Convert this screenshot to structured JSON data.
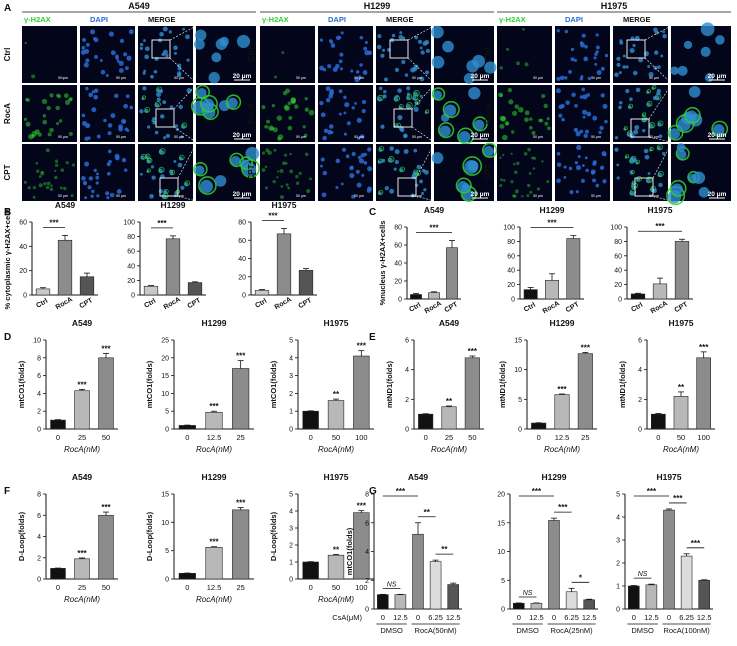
{
  "panels": {
    "A": {
      "letter": "A",
      "groups": [
        {
          "title": "A549",
          "channels": [
            "γ-H2AX",
            "DAPI",
            "MERGE"
          ]
        },
        {
          "title": "H1299",
          "channels": [
            "γ-H2AX",
            "DAPI",
            "MERGE"
          ]
        },
        {
          "title": "H1975",
          "channels": [
            "γ-H2AX",
            "DAPI",
            "MERGE"
          ]
        }
      ],
      "rows": [
        "Ctrl",
        "RocA",
        "CPT"
      ],
      "scale_small": "50 μm",
      "scale_large": "20 μm",
      "colors": {
        "gh2ax": "#2fd02f",
        "dapi": "#2a6bd6",
        "merge": "#2f8fd0",
        "bg": "#03061a"
      }
    },
    "B": {
      "letter": "B"
    },
    "C": {
      "letter": "C"
    },
    "D": {
      "letter": "D"
    },
    "E": {
      "letter": "E"
    },
    "F": {
      "letter": "F"
    },
    "G": {
      "letter": "G"
    }
  },
  "chart_data": [
    {
      "id": "B1",
      "panel": "B",
      "type": "bar",
      "title": "A549",
      "ylabel": "% cytoplasmic γ-H2AX+cells",
      "categories": [
        "Ctrl",
        "RocA",
        "CPT"
      ],
      "values": [
        5,
        45,
        15
      ],
      "errors": [
        1,
        4,
        3
      ],
      "ylim": [
        0,
        60
      ],
      "yticks": [
        0,
        20,
        40,
        60
      ],
      "colors": [
        "#c8c8c8",
        "#8c8c8c",
        "#555555"
      ],
      "sig": [
        {
          "from": 0,
          "to": 1,
          "label": "***"
        }
      ]
    },
    {
      "id": "B2",
      "panel": "B",
      "type": "bar",
      "title": "H1299",
      "ylabel": "",
      "categories": [
        "Ctrl",
        "RocA",
        "CPT"
      ],
      "values": [
        12,
        77,
        17
      ],
      "errors": [
        1,
        4,
        1
      ],
      "ylim": [
        0,
        100
      ],
      "yticks": [
        0,
        20,
        40,
        60,
        80,
        100
      ],
      "colors": [
        "#c8c8c8",
        "#8c8c8c",
        "#555555"
      ],
      "sig": [
        {
          "from": 0,
          "to": 1,
          "label": "***"
        }
      ]
    },
    {
      "id": "B3",
      "panel": "B",
      "type": "bar",
      "title": "H1975",
      "ylabel": "",
      "categories": [
        "Ctrl",
        "RocA",
        "CPT"
      ],
      "values": [
        5,
        67,
        27
      ],
      "errors": [
        1,
        6,
        2
      ],
      "ylim": [
        0,
        80
      ],
      "yticks": [
        0,
        20,
        40,
        60,
        80
      ],
      "colors": [
        "#c8c8c8",
        "#8c8c8c",
        "#555555"
      ],
      "sig": [
        {
          "from": 0,
          "to": 1,
          "label": "***"
        }
      ]
    },
    {
      "id": "C1",
      "panel": "C",
      "type": "bar",
      "title": "A549",
      "ylabel": "%nucleus γ-H2AX+cells",
      "categories": [
        "Ctrl",
        "RocA",
        "CPT"
      ],
      "values": [
        5,
        7,
        57
      ],
      "errors": [
        1,
        1,
        8
      ],
      "ylim": [
        0,
        80
      ],
      "yticks": [
        0,
        20,
        40,
        60,
        80
      ],
      "colors": [
        "#111111",
        "#b8b8b8",
        "#8c8c8c"
      ],
      "sig": [
        {
          "from": 0,
          "to": 2,
          "label": "***"
        }
      ]
    },
    {
      "id": "C2",
      "panel": "C",
      "type": "bar",
      "title": "H1299",
      "ylabel": "",
      "categories": [
        "Ctrl",
        "RocA",
        "CPT"
      ],
      "values": [
        13,
        26,
        84
      ],
      "errors": [
        3,
        9,
        4
      ],
      "ylim": [
        0,
        100
      ],
      "yticks": [
        0,
        20,
        40,
        60,
        80,
        100
      ],
      "colors": [
        "#111111",
        "#b8b8b8",
        "#8c8c8c"
      ],
      "sig": [
        {
          "from": 0,
          "to": 2,
          "label": "***"
        }
      ]
    },
    {
      "id": "C3",
      "panel": "C",
      "type": "bar",
      "title": "H1975",
      "ylabel": "",
      "categories": [
        "Ctrl",
        "RocA",
        "CPT"
      ],
      "values": [
        7,
        21,
        80
      ],
      "errors": [
        1,
        8,
        3
      ],
      "ylim": [
        0,
        100
      ],
      "yticks": [
        0,
        20,
        40,
        60,
        80,
        100
      ],
      "colors": [
        "#111111",
        "#b8b8b8",
        "#8c8c8c"
      ],
      "sig": [
        {
          "from": 0,
          "to": 2,
          "label": "***"
        }
      ]
    },
    {
      "id": "D1",
      "panel": "D",
      "type": "bar",
      "title": "A549",
      "ylabel": "mtCO1(folds)",
      "xlabel": "RocA(nM)",
      "categories": [
        "0",
        "25",
        "50"
      ],
      "values": [
        1,
        4.3,
        8.0
      ],
      "errors": [
        0.05,
        0.15,
        0.5
      ],
      "ylim": [
        0,
        10
      ],
      "yticks": [
        0,
        2,
        4,
        6,
        8,
        10
      ],
      "colors": [
        "#111111",
        "#b8b8b8",
        "#8c8c8c"
      ],
      "stars": [
        "",
        "***",
        "***"
      ]
    },
    {
      "id": "D2",
      "panel": "D",
      "type": "bar",
      "title": "H1299",
      "ylabel": "mtCO1(folds)",
      "xlabel": "RocA(nM)",
      "categories": [
        "0",
        "12.5",
        "25"
      ],
      "values": [
        1,
        4.7,
        17
      ],
      "errors": [
        0.1,
        0.3,
        2.2
      ],
      "ylim": [
        0,
        25
      ],
      "yticks": [
        0,
        5,
        10,
        15,
        20,
        25
      ],
      "colors": [
        "#111111",
        "#b8b8b8",
        "#8c8c8c"
      ],
      "stars": [
        "",
        "***",
        "***"
      ]
    },
    {
      "id": "D3",
      "panel": "D",
      "type": "bar",
      "title": "H1975",
      "ylabel": "mtCO1(folds)",
      "xlabel": "RocA(nM)",
      "categories": [
        "0",
        "50",
        "100"
      ],
      "values": [
        1,
        1.6,
        4.1
      ],
      "errors": [
        0.02,
        0.08,
        0.3
      ],
      "ylim": [
        0,
        5
      ],
      "yticks": [
        0,
        1,
        2,
        3,
        4,
        5
      ],
      "colors": [
        "#111111",
        "#b8b8b8",
        "#8c8c8c"
      ],
      "stars": [
        "",
        "**",
        "***"
      ]
    },
    {
      "id": "E1",
      "panel": "E",
      "type": "bar",
      "title": "A549",
      "ylabel": "mtND1(folds)",
      "xlabel": "RocA(nM)",
      "categories": [
        "0",
        "25",
        "50"
      ],
      "values": [
        1,
        1.5,
        4.8
      ],
      "errors": [
        0.03,
        0.05,
        0.12
      ],
      "ylim": [
        0,
        6
      ],
      "yticks": [
        0,
        2,
        4,
        6
      ],
      "colors": [
        "#111111",
        "#b8b8b8",
        "#8c8c8c"
      ],
      "stars": [
        "",
        "**",
        "***"
      ]
    },
    {
      "id": "E2",
      "panel": "E",
      "type": "bar",
      "title": "H1299",
      "ylabel": "mtND1(folds)",
      "xlabel": "RocA(nM)",
      "categories": [
        "0",
        "12.5",
        "25"
      ],
      "values": [
        1,
        5.8,
        12.7
      ],
      "errors": [
        0.05,
        0.1,
        0.2
      ],
      "ylim": [
        0,
        15
      ],
      "yticks": [
        0,
        5,
        10,
        15
      ],
      "colors": [
        "#111111",
        "#b8b8b8",
        "#8c8c8c"
      ],
      "stars": [
        "",
        "***",
        "***"
      ]
    },
    {
      "id": "E3",
      "panel": "E",
      "type": "bar",
      "title": "H1975",
      "ylabel": "mtND1(folds)",
      "xlabel": "RocA(nM)",
      "categories": [
        "0",
        "50",
        "100"
      ],
      "values": [
        1,
        2.2,
        4.8
      ],
      "errors": [
        0.05,
        0.3,
        0.4
      ],
      "ylim": [
        0,
        6
      ],
      "yticks": [
        0,
        2,
        4,
        6
      ],
      "colors": [
        "#111111",
        "#b8b8b8",
        "#8c8c8c"
      ],
      "stars": [
        "",
        "**",
        "***"
      ]
    },
    {
      "id": "F1",
      "panel": "F",
      "type": "bar",
      "title": "A549",
      "ylabel": "D-Loop(folds)",
      "xlabel": "RocA(nM)",
      "categories": [
        "0",
        "25",
        "50"
      ],
      "values": [
        1,
        1.9,
        6.0
      ],
      "errors": [
        0.03,
        0.08,
        0.3
      ],
      "ylim": [
        0,
        8
      ],
      "yticks": [
        0,
        2,
        4,
        6,
        8
      ],
      "colors": [
        "#111111",
        "#b8b8b8",
        "#8c8c8c"
      ],
      "stars": [
        "",
        "***",
        "***"
      ]
    },
    {
      "id": "F2",
      "panel": "F",
      "type": "bar",
      "title": "H1299",
      "ylabel": "D-Loop(folds)",
      "xlabel": "RocA(nM)",
      "categories": [
        "0",
        "12.5",
        "25"
      ],
      "values": [
        1,
        5.6,
        12.2
      ],
      "errors": [
        0.05,
        0.1,
        0.4
      ],
      "ylim": [
        0,
        15
      ],
      "yticks": [
        0,
        5,
        10,
        15
      ],
      "colors": [
        "#111111",
        "#b8b8b8",
        "#8c8c8c"
      ],
      "stars": [
        "",
        "***",
        "***"
      ]
    },
    {
      "id": "F3",
      "panel": "F",
      "type": "bar",
      "title": "H1975",
      "ylabel": "D-Loop(folds)",
      "xlabel": "RocA(nM)",
      "categories": [
        "0",
        "50",
        "100"
      ],
      "values": [
        1,
        1.4,
        3.9
      ],
      "errors": [
        0.02,
        0.05,
        0.12
      ],
      "ylim": [
        0,
        5
      ],
      "yticks": [
        0,
        1,
        2,
        3,
        4,
        5
      ],
      "colors": [
        "#111111",
        "#b8b8b8",
        "#8c8c8c"
      ],
      "stars": [
        "",
        "**",
        "***"
      ]
    },
    {
      "id": "G1",
      "panel": "G",
      "type": "bar",
      "title": "A549",
      "ylabel": "mtCO1(folds)",
      "csa_label": "CsA(μM)",
      "categories": [
        "0",
        "12.5",
        "0",
        "6.25",
        "12.5"
      ],
      "groups": [
        {
          "label": "DMSO",
          "from": 0,
          "to": 1
        },
        {
          "label": "RocA(50nM)",
          "from": 2,
          "to": 4
        }
      ],
      "values": [
        1,
        1,
        5.2,
        3.3,
        1.7
      ],
      "errors": [
        0.02,
        0.02,
        0.8,
        0.1,
        0.1
      ],
      "ylim": [
        0,
        8
      ],
      "yticks": [
        0,
        2,
        4,
        6,
        8
      ],
      "colors": [
        "#111111",
        "#b8b8b8",
        "#8c8c8c",
        "#dcdcdc",
        "#555555"
      ],
      "sig": [
        {
          "from": 0,
          "to": 1,
          "label": "NS"
        },
        {
          "from": 0,
          "to": 2,
          "label": "***"
        },
        {
          "from": 2,
          "to": 3,
          "label": "**"
        },
        {
          "from": 3,
          "to": 4,
          "label": "**"
        }
      ]
    },
    {
      "id": "G2",
      "panel": "G",
      "type": "bar",
      "title": "H1299",
      "ylabel": "",
      "csa_label": "",
      "categories": [
        "0",
        "12.5",
        "0",
        "6.25",
        "12.5"
      ],
      "groups": [
        {
          "label": "DMSO",
          "from": 0,
          "to": 1
        },
        {
          "label": "RocA(25nM)",
          "from": 2,
          "to": 4
        }
      ],
      "values": [
        1,
        1,
        15.4,
        3.0,
        1.6
      ],
      "errors": [
        0.05,
        0.05,
        0.4,
        0.6,
        0.1
      ],
      "ylim": [
        0,
        20
      ],
      "yticks": [
        0,
        5,
        10,
        15,
        20
      ],
      "colors": [
        "#111111",
        "#b8b8b8",
        "#8c8c8c",
        "#dcdcdc",
        "#555555"
      ],
      "sig": [
        {
          "from": 0,
          "to": 1,
          "label": "NS"
        },
        {
          "from": 0,
          "to": 2,
          "label": "***"
        },
        {
          "from": 2,
          "to": 3,
          "label": "***"
        },
        {
          "from": 3,
          "to": 4,
          "label": "*"
        }
      ]
    },
    {
      "id": "G3",
      "panel": "G",
      "type": "bar",
      "title": "H1975",
      "ylabel": "",
      "csa_label": "",
      "categories": [
        "0",
        "12.5",
        "0",
        "6.25",
        "12.5"
      ],
      "groups": [
        {
          "label": "DMSO",
          "from": 0,
          "to": 1
        },
        {
          "label": "RocA(100nM)",
          "from": 2,
          "to": 4
        }
      ],
      "values": [
        1,
        1.05,
        4.3,
        2.3,
        1.25
      ],
      "errors": [
        0.02,
        0.03,
        0.05,
        0.1,
        0.02
      ],
      "ylim": [
        0,
        5
      ],
      "yticks": [
        0,
        1,
        2,
        3,
        4,
        5
      ],
      "colors": [
        "#111111",
        "#b8b8b8",
        "#8c8c8c",
        "#dcdcdc",
        "#555555"
      ],
      "sig": [
        {
          "from": 0,
          "to": 1,
          "label": "NS"
        },
        {
          "from": 0,
          "to": 2,
          "label": "***"
        },
        {
          "from": 2,
          "to": 3,
          "label": "***"
        },
        {
          "from": 3,
          "to": 4,
          "label": "***"
        }
      ]
    }
  ]
}
